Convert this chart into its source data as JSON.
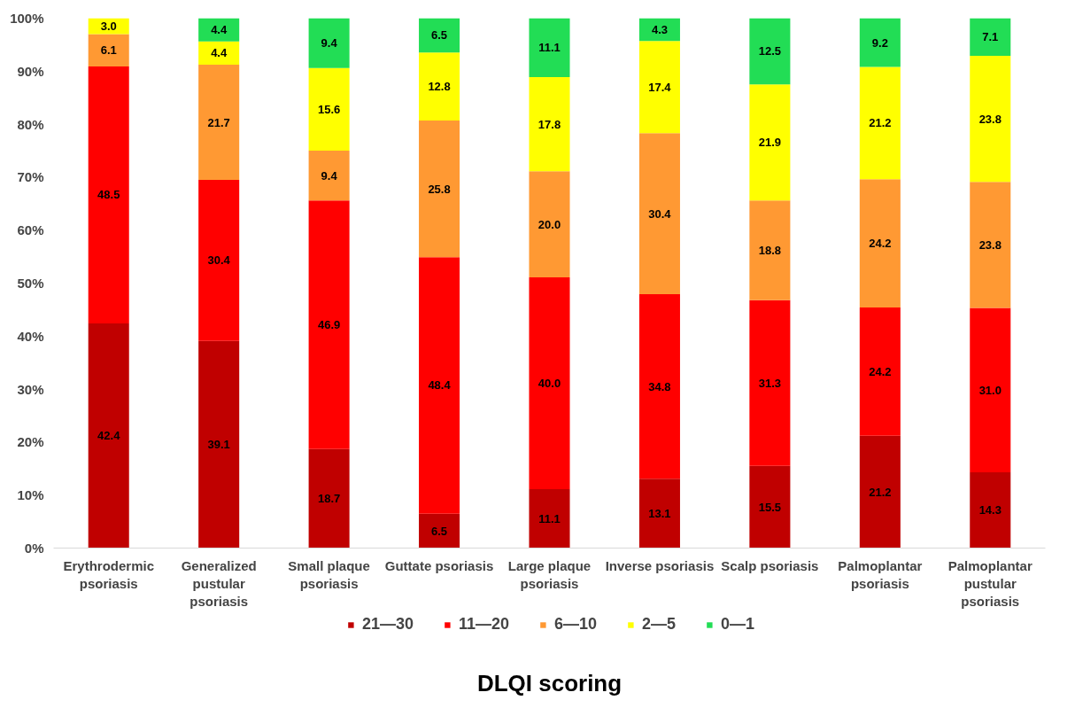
{
  "chart_data": {
    "type": "bar",
    "stacked": true,
    "annotations": [
      "DLQI scoring"
    ],
    "categories": [
      "Erythrodermic psoriasis",
      "Generalized pustular psoriasis",
      "Small plaque psoriasis",
      "Guttate psoriasis",
      "Large plaque psoriasis",
      "Inverse psoriasis",
      "Scalp psoriasis",
      "Palmoplantar psoriasis",
      "Palmoplantar pustular psoriasis"
    ],
    "series": [
      {
        "name": "21—30",
        "color": "#c00000",
        "values": [
          42.4,
          39.1,
          18.7,
          6.5,
          11.1,
          13.1,
          15.5,
          21.2,
          14.3
        ],
        "value_labels": [
          "42.4",
          "39.1",
          "18.7",
          "6.5",
          "11.1",
          "13.1",
          "15.5",
          "21.2",
          "14.3"
        ]
      },
      {
        "name": "11—20",
        "color": "#ff0000",
        "values": [
          48.5,
          30.4,
          46.9,
          48.4,
          40.0,
          34.8,
          31.3,
          24.2,
          31.0
        ],
        "value_labels": [
          "48.5",
          "30.4",
          "46.9",
          "48.4",
          "40.0",
          "34.8",
          "31.3",
          "24.2",
          "31.0"
        ]
      },
      {
        "name": "6—10",
        "color": "#ff9933",
        "values": [
          6.1,
          21.7,
          9.4,
          25.8,
          20.0,
          30.4,
          18.8,
          24.2,
          23.8
        ],
        "value_labels": [
          "6.1",
          "21.7",
          "9.4",
          "25.8",
          "20.0",
          "30.4",
          "18.8",
          "24.2",
          "23.8"
        ]
      },
      {
        "name": "2—5",
        "color": "#ffff00",
        "values": [
          3.0,
          4.4,
          15.6,
          12.8,
          17.8,
          17.4,
          21.9,
          21.2,
          23.8
        ],
        "value_labels": [
          "3.0",
          "4.4",
          "15.6",
          "12.8",
          "17.8",
          "17.4",
          "21.9",
          "21.2",
          "23.8"
        ]
      },
      {
        "name": "0—1",
        "color": "#22dd55",
        "values": [
          null,
          4.4,
          9.4,
          6.5,
          11.1,
          4.3,
          12.5,
          9.2,
          7.1
        ],
        "value_labels": [
          null,
          "4.4",
          "9.4",
          "6.5",
          "11.1",
          "4.3",
          "12.5",
          "9.2",
          "7.1"
        ]
      }
    ],
    "ylim": [
      0,
      100
    ],
    "yticks": [
      {
        "value": 0,
        "label": "0%"
      },
      {
        "value": 10,
        "label": "10%"
      },
      {
        "value": 20,
        "label": "20%"
      },
      {
        "value": 30,
        "label": "30%"
      },
      {
        "value": 40,
        "label": "40%"
      },
      {
        "value": 50,
        "label": "50%"
      },
      {
        "value": 60,
        "label": "60%"
      },
      {
        "value": 70,
        "label": "70%"
      },
      {
        "value": 80,
        "label": "80%"
      },
      {
        "value": 90,
        "label": "90%"
      },
      {
        "value": 100,
        "label": "100%"
      }
    ],
    "legend": "bottom",
    "grid": false
  }
}
